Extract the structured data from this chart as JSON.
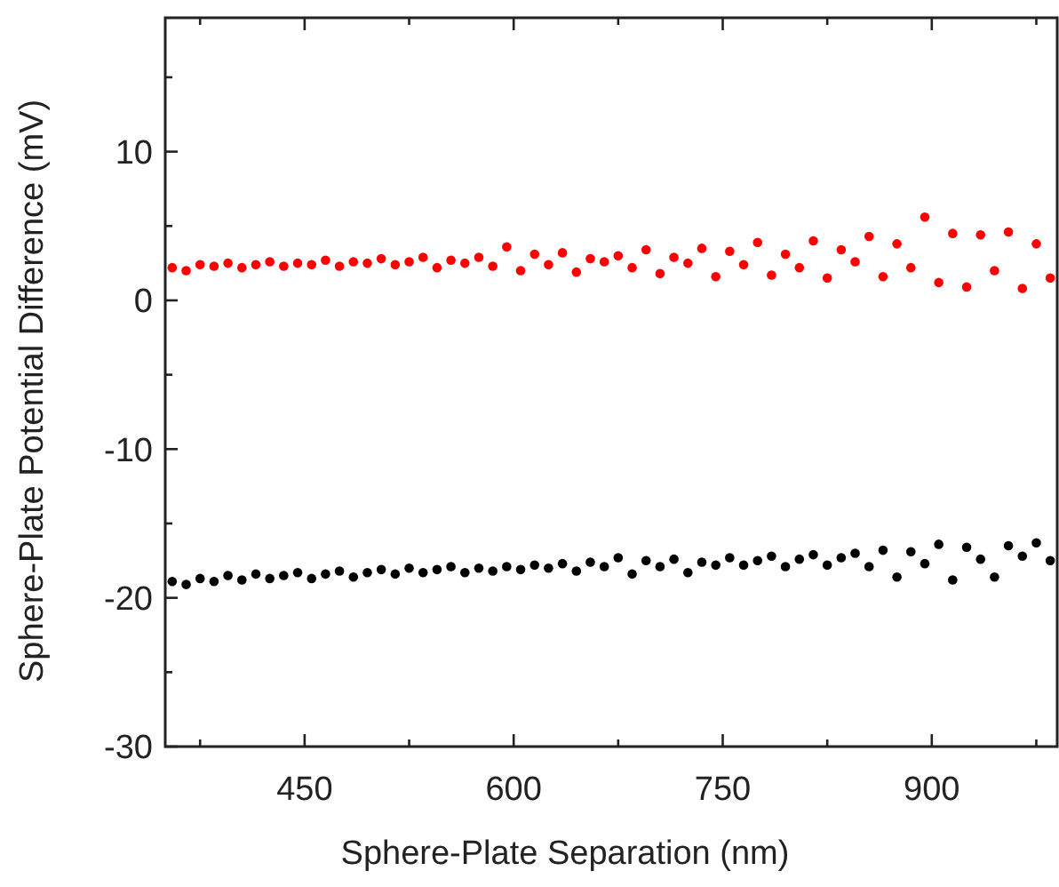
{
  "chart_data": {
    "type": "scatter",
    "xlabel": "Sphere-Plate Separation (nm)",
    "ylabel": "Sphere-Plate Potential Difference (mV)",
    "xlim": [
      350,
      990
    ],
    "ylim": [
      -30,
      19
    ],
    "xticks": [
      {
        "value": 375,
        "label": null
      },
      450,
      {
        "value": 525,
        "label": null
      },
      600,
      {
        "value": 675,
        "label": null
      },
      750,
      {
        "value": 825,
        "label": null
      },
      900,
      {
        "value": 975,
        "label": null
      }
    ],
    "yticks": [
      -30,
      {
        "value": -25,
        "label": null
      },
      -20,
      {
        "value": -15,
        "label": null
      },
      -10,
      {
        "value": -5,
        "label": null
      },
      0,
      {
        "value": 5,
        "label": null
      },
      10,
      {
        "value": 15,
        "label": null
      }
    ],
    "grid": false,
    "marker": "circle",
    "x": [
      355,
      365,
      375,
      385,
      395,
      405,
      415,
      425,
      435,
      445,
      455,
      465,
      475,
      485,
      495,
      505,
      515,
      525,
      535,
      545,
      555,
      565,
      575,
      585,
      595,
      605,
      615,
      625,
      635,
      645,
      655,
      665,
      675,
      685,
      695,
      705,
      715,
      725,
      735,
      745,
      755,
      765,
      775,
      785,
      795,
      805,
      815,
      825,
      835,
      845,
      855,
      865,
      875,
      885,
      895,
      905,
      915,
      925,
      935,
      945,
      955,
      965,
      975,
      985
    ],
    "series": [
      {
        "color": "#ff0000",
        "values": [
          2.2,
          2.0,
          2.4,
          2.3,
          2.5,
          2.2,
          2.4,
          2.6,
          2.3,
          2.5,
          2.4,
          2.7,
          2.3,
          2.6,
          2.5,
          2.8,
          2.4,
          2.6,
          2.9,
          2.2,
          2.7,
          2.5,
          2.9,
          2.3,
          3.6,
          2.0,
          3.1,
          2.4,
          3.2,
          1.9,
          2.8,
          2.6,
          3.0,
          2.2,
          3.4,
          1.8,
          2.9,
          2.5,
          3.5,
          1.6,
          3.3,
          2.4,
          3.9,
          1.7,
          3.1,
          2.2,
          4.0,
          1.5,
          3.4,
          2.6,
          4.3,
          1.6,
          3.8,
          2.2,
          5.6,
          1.2,
          4.5,
          0.9,
          4.4,
          2.0,
          4.6,
          0.8,
          3.8,
          1.5
        ]
      },
      {
        "color": "#000000",
        "values": [
          -18.9,
          -19.1,
          -18.7,
          -18.9,
          -18.5,
          -18.8,
          -18.4,
          -18.7,
          -18.5,
          -18.3,
          -18.7,
          -18.4,
          -18.2,
          -18.6,
          -18.3,
          -18.1,
          -18.4,
          -18.0,
          -18.3,
          -18.1,
          -17.9,
          -18.3,
          -18.0,
          -18.2,
          -17.9,
          -18.1,
          -17.8,
          -18.0,
          -17.7,
          -18.2,
          -17.6,
          -17.9,
          -17.3,
          -18.4,
          -17.5,
          -17.9,
          -17.4,
          -18.3,
          -17.6,
          -17.8,
          -17.3,
          -17.8,
          -17.5,
          -17.2,
          -17.9,
          -17.4,
          -17.1,
          -17.8,
          -17.3,
          -17.0,
          -17.9,
          -16.8,
          -18.6,
          -16.9,
          -17.7,
          -16.4,
          -18.8,
          -16.6,
          -17.4,
          -18.6,
          -16.5,
          -17.2,
          -16.3,
          -17.5
        ]
      }
    ]
  }
}
